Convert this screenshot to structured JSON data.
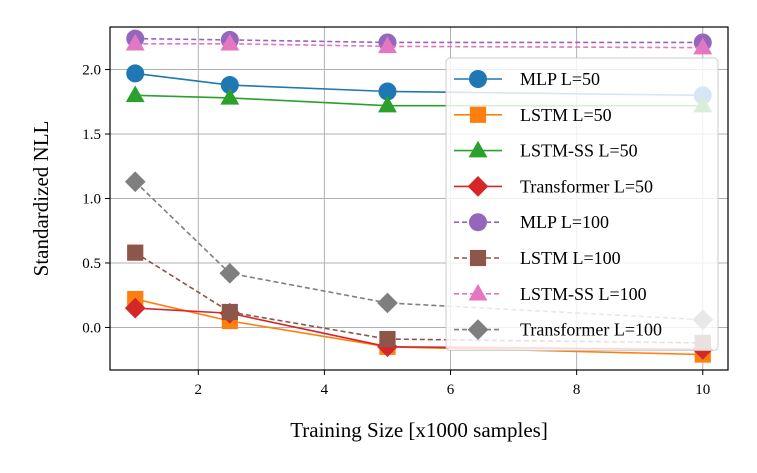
{
  "chart_data": {
    "type": "line",
    "title": "",
    "xlabel": "Training Size [x1000 samples]",
    "ylabel": "Standardized NLL",
    "xlim": [
      0.6,
      10.4
    ],
    "ylim": [
      -0.33,
      2.33
    ],
    "xticks": [
      2,
      4,
      6,
      8,
      10
    ],
    "yticks": [
      0.0,
      0.5,
      1.0,
      1.5,
      2.0
    ],
    "xtick_labels": [
      "2",
      "4",
      "6",
      "8",
      "10"
    ],
    "ytick_labels": [
      "0.0",
      "0.5",
      "1.0",
      "1.5",
      "2.0"
    ],
    "grid": true,
    "legend_position": "right",
    "x": [
      1,
      2.5,
      5,
      10
    ],
    "series": [
      {
        "name": "MLP L=50",
        "color": "#1f77b4",
        "marker": "circle",
        "dashed": false,
        "values": [
          1.97,
          1.88,
          1.83,
          1.8
        ]
      },
      {
        "name": "LSTM L=50",
        "color": "#ff7f0e",
        "marker": "square",
        "dashed": false,
        "values": [
          0.22,
          0.05,
          -0.15,
          -0.21
        ]
      },
      {
        "name": "LSTM-SS L=50",
        "color": "#2ca02c",
        "marker": "triangle",
        "dashed": false,
        "values": [
          1.8,
          1.78,
          1.72,
          1.72
        ]
      },
      {
        "name": "Transformer L=50",
        "color": "#d62728",
        "marker": "diamond",
        "dashed": false,
        "values": [
          0.15,
          0.11,
          -0.15,
          -0.17
        ]
      },
      {
        "name": "MLP L=100",
        "color": "#9467bd",
        "marker": "circle",
        "dashed": true,
        "values": [
          2.24,
          2.23,
          2.21,
          2.21
        ]
      },
      {
        "name": "LSTM L=100",
        "color": "#8c564b",
        "marker": "square",
        "dashed": true,
        "values": [
          0.58,
          0.12,
          -0.09,
          -0.12
        ]
      },
      {
        "name": "LSTM-SS L=100",
        "color": "#e377c2",
        "marker": "triangle",
        "dashed": true,
        "values": [
          2.2,
          2.2,
          2.18,
          2.17
        ]
      },
      {
        "name": "Transformer L=100",
        "color": "#7f7f7f",
        "marker": "diamond",
        "dashed": true,
        "values": [
          1.13,
          0.42,
          0.19,
          0.06
        ]
      }
    ]
  }
}
